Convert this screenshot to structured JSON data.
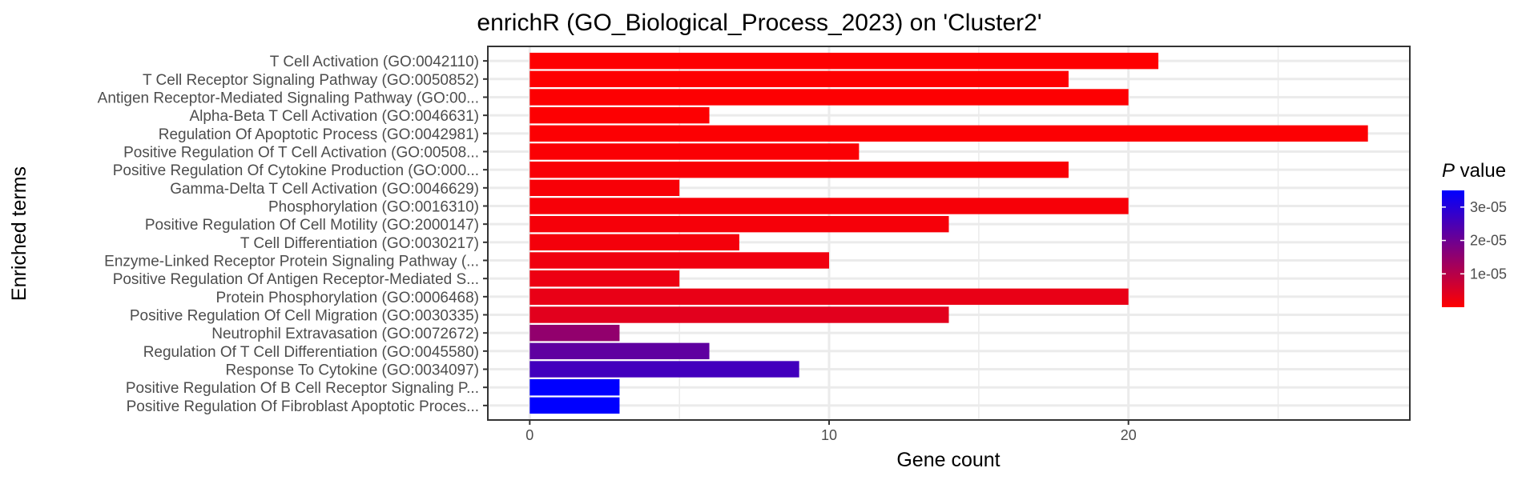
{
  "chart_data": {
    "type": "bar",
    "orientation": "horizontal",
    "title": "enrichR (GO_Biological_Process_2023) on 'Cluster2'",
    "xlabel": "Gene count",
    "ylabel": "Enriched terms",
    "xlim": [
      -1.4,
      29.4
    ],
    "xticks": [
      0,
      10,
      20
    ],
    "grid": true,
    "legend": {
      "title_italic": "P",
      "title_rest": " value",
      "placement": "right",
      "range": [
        0,
        3.5e-05
      ],
      "ticks": [
        {
          "value": 1e-05,
          "label": "1e-05"
        },
        {
          "value": 2e-05,
          "label": "2e-05"
        },
        {
          "value": 3e-05,
          "label": "3e-05"
        }
      ],
      "low_color": "#ff0000",
      "high_color": "#0000ff"
    },
    "categories": [
      "T Cell Activation (GO:0042110)",
      "T Cell Receptor Signaling Pathway (GO:0050852)",
      "Antigen Receptor-Mediated Signaling Pathway (GO:00...",
      "Alpha-Beta T Cell Activation (GO:0046631)",
      "Regulation Of Apoptotic Process (GO:0042981)",
      "Positive Regulation Of T Cell Activation (GO:00508...",
      "Positive Regulation Of Cytokine Production (GO:000...",
      "Gamma-Delta T Cell Activation (GO:0046629)",
      "Phosphorylation (GO:0016310)",
      "Positive Regulation Of Cell Motility (GO:2000147)",
      "T Cell Differentiation (GO:0030217)",
      "Enzyme-Linked Receptor Protein Signaling Pathway (...",
      "Positive Regulation Of Antigen Receptor-Mediated S...",
      "Protein Phosphorylation (GO:0006468)",
      "Positive Regulation Of Cell Migration (GO:0030335)",
      "Neutrophil Extravasation (GO:0072672)",
      "Regulation Of T Cell Differentiation (GO:0045580)",
      "Response To Cytokine (GO:0034097)",
      "Positive Regulation Of B Cell Receptor Signaling P...",
      "Positive Regulation Of Fibroblast Apoptotic Proces..."
    ],
    "values": [
      21,
      18,
      20,
      6,
      28,
      11,
      18,
      5,
      20,
      14,
      7,
      10,
      5,
      20,
      14,
      3,
      6,
      9,
      3,
      3
    ],
    "pvalues": [
      1e-07,
      2e-07,
      3e-07,
      3e-07,
      4e-07,
      6e-07,
      8e-07,
      9e-07,
      1.1e-06,
      1.3e-06,
      1.5e-06,
      2e-06,
      2.5e-06,
      3e-06,
      4e-06,
      1.5e-05,
      2.2e-05,
      2.6e-05,
      3.6e-05,
      3.6e-05
    ]
  }
}
